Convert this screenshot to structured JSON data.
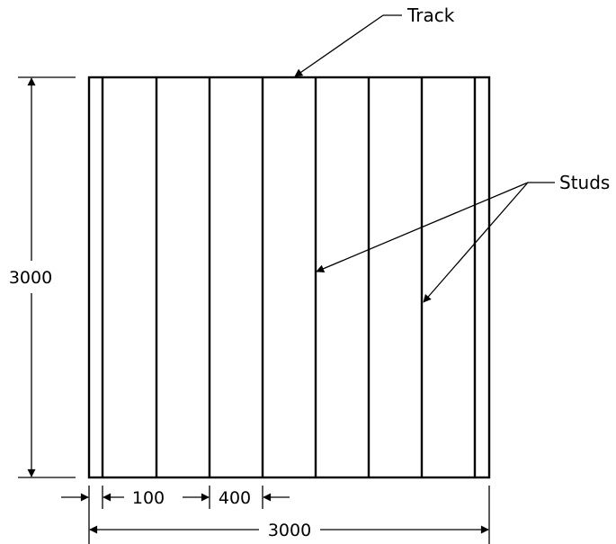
{
  "labels": {
    "track": "Track",
    "studs": "Studs"
  },
  "dimensions": {
    "height": "3000",
    "width": "3000",
    "end_gap": "100",
    "spacing": "400"
  },
  "colors": {
    "line": "#000000",
    "background": "#ffffff"
  }
}
